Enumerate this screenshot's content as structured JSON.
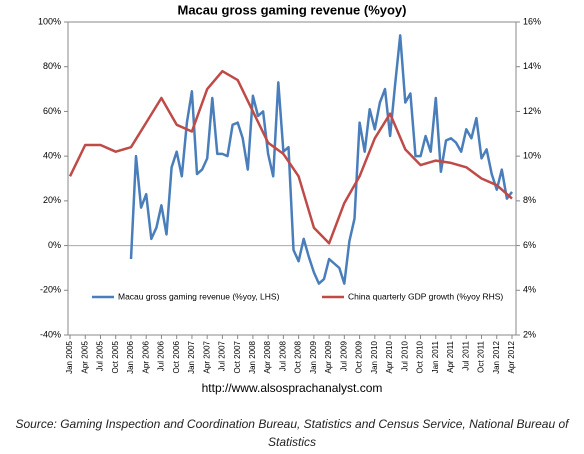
{
  "chart_data": {
    "type": "line",
    "title": "Macau gross gaming revenue (%yoy)",
    "categories": [
      "Jan 2005",
      "Apr 2005",
      "Jul 2005",
      "Oct 2005",
      "Jan 2006",
      "Apr 2006",
      "Jul 2006",
      "Oct 2006",
      "Jan 2007",
      "Apr 2007",
      "Jul 2007",
      "Oct 2007",
      "Jan 2008",
      "Apr 2008",
      "Jul 2008",
      "Oct 2008",
      "Jan 2009",
      "Apr 2009",
      "Jul 2009",
      "Oct 2009",
      "Jan 2010",
      "Apr 2010",
      "Jul 2010",
      "Oct 2010",
      "Jan 2011",
      "Apr 2011",
      "Jul 2011",
      "Oct 2011",
      "Jan 2012",
      "Apr 2012"
    ],
    "xlim": [
      "2005-01",
      "2012-04"
    ],
    "ylim": [
      -40,
      100
    ],
    "yticks": [
      {
        "value": -40,
        "label": "-40%"
      },
      {
        "value": -20,
        "label": "-20%"
      },
      {
        "value": 0,
        "label": "0%"
      },
      {
        "value": 20,
        "label": "20%"
      },
      {
        "value": 40,
        "label": "40%"
      },
      {
        "value": 60,
        "label": "60%"
      },
      {
        "value": 80,
        "label": "80%"
      },
      {
        "value": 100,
        "label": "100%"
      }
    ],
    "y2lim": [
      2,
      16
    ],
    "y2ticks": [
      {
        "value": 2,
        "label": "2%"
      },
      {
        "value": 4,
        "label": "4%"
      },
      {
        "value": 6,
        "label": "6%"
      },
      {
        "value": 8,
        "label": "8%"
      },
      {
        "value": 10,
        "label": "10%"
      },
      {
        "value": 12,
        "label": "12%"
      },
      {
        "value": 14,
        "label": "14%"
      },
      {
        "value": 16,
        "label": "16%"
      }
    ],
    "series": [
      {
        "name": "Macau gross gaming revenue (%yoy, LHS)",
        "color": "#4a7ebb",
        "x": [
          "2006-01",
          "2006-02",
          "2006-03",
          "2006-04",
          "2006-05",
          "2006-06",
          "2006-07",
          "2006-08",
          "2006-09",
          "2006-10",
          "2006-11",
          "2006-12",
          "2007-01",
          "2007-02",
          "2007-03",
          "2007-04",
          "2007-05",
          "2007-06",
          "2007-07",
          "2007-08",
          "2007-09",
          "2007-10",
          "2007-11",
          "2007-12",
          "2008-01",
          "2008-02",
          "2008-03",
          "2008-04",
          "2008-05",
          "2008-06",
          "2008-07",
          "2008-08",
          "2008-09",
          "2008-10",
          "2008-11",
          "2008-12",
          "2009-01",
          "2009-02",
          "2009-03",
          "2009-04",
          "2009-05",
          "2009-06",
          "2009-07",
          "2009-08",
          "2009-09",
          "2009-10",
          "2009-11",
          "2009-12",
          "2010-01",
          "2010-02",
          "2010-03",
          "2010-04",
          "2010-05",
          "2010-06",
          "2010-07",
          "2010-08",
          "2010-09",
          "2010-10",
          "2010-11",
          "2010-12",
          "2011-01",
          "2011-02",
          "2011-03",
          "2011-04",
          "2011-05",
          "2011-06",
          "2011-07",
          "2011-08",
          "2011-09",
          "2011-10",
          "2011-11",
          "2011-12",
          "2012-01",
          "2012-02",
          "2012-03",
          "2012-04"
        ],
        "values": [
          -6,
          40,
          17,
          23,
          3,
          8,
          18,
          5,
          35,
          42,
          31,
          55,
          69,
          32,
          34,
          39,
          66,
          41,
          41,
          40,
          54,
          55,
          48,
          34,
          67,
          58,
          60,
          41,
          31,
          73,
          42,
          44,
          -2,
          -7,
          3,
          -5,
          -12,
          -17,
          -15,
          -6,
          -8,
          -10,
          -17,
          2,
          12,
          55,
          42,
          61,
          52,
          64,
          70,
          49,
          72,
          94,
          64,
          68,
          40,
          40,
          49,
          42,
          66,
          33,
          47,
          48,
          46,
          42,
          52,
          48,
          57,
          39,
          43,
          32,
          25,
          34,
          21,
          24
        ]
      },
      {
        "name": "China quarterly GDP growth (%yoy RHS)",
        "color": "#be4b48",
        "axis": "y2",
        "x": [
          "2005-01",
          "2005-04",
          "2005-07",
          "2005-10",
          "2006-01",
          "2006-04",
          "2006-07",
          "2006-10",
          "2007-01",
          "2007-04",
          "2007-07",
          "2007-10",
          "2008-01",
          "2008-04",
          "2008-07",
          "2008-10",
          "2009-01",
          "2009-04",
          "2009-07",
          "2009-10",
          "2010-01",
          "2010-04",
          "2010-07",
          "2010-10",
          "2011-01",
          "2011-04",
          "2011-07",
          "2011-10",
          "2012-01",
          "2012-04"
        ],
        "values": [
          9.1,
          10.5,
          10.5,
          10.2,
          10.4,
          11.5,
          12.6,
          11.4,
          11.1,
          13.0,
          13.8,
          13.4,
          12.0,
          10.6,
          10.1,
          9.1,
          6.8,
          6.1,
          7.9,
          9.1,
          10.8,
          11.9,
          10.3,
          9.6,
          9.8,
          9.7,
          9.5,
          9.0,
          8.7,
          8.1
        ]
      }
    ],
    "url": "http://www.alsosprachanalyst.com",
    "source": "Source: Gaming Inspection and Coordination Bureau, Statistics and Census Service, National Bureau of Statistics"
  }
}
